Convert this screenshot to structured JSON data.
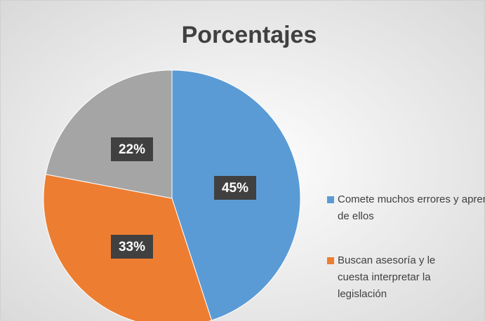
{
  "chart_data": {
    "type": "pie",
    "title": "Porcentajes",
    "categories": [
      "Comete muchos errores y aprende de ellos",
      "Buscan asesoría y le cuesta interpretar la legislación",
      null
    ],
    "values": [
      45,
      33,
      22
    ],
    "value_labels": [
      "45%",
      "33%",
      "22%"
    ],
    "colors": [
      "#5b9bd5",
      "#ed7d31",
      "#a5a5a5"
    ],
    "legend": "right"
  }
}
